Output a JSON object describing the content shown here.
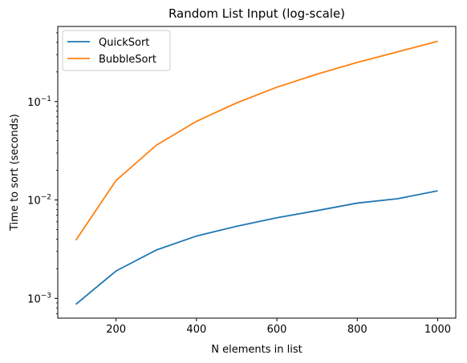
{
  "chart_data": {
    "type": "line",
    "title": "Random List Input (log-scale)",
    "xlabel": "N elements in list",
    "ylabel": "Time to sort (seconds)",
    "xscale": "linear",
    "yscale": "log",
    "xlim": [
      55,
      1045
    ],
    "ylim": [
      0.00063,
      0.58
    ],
    "x_ticks": [
      {
        "value": 200,
        "label": "200"
      },
      {
        "value": 400,
        "label": "400"
      },
      {
        "value": 600,
        "label": "600"
      },
      {
        "value": 800,
        "label": "800"
      },
      {
        "value": 1000,
        "label": "1000"
      }
    ],
    "y_ticks": [
      {
        "value": 0.001,
        "base": "10",
        "exp": "−3"
      },
      {
        "value": 0.01,
        "base": "10",
        "exp": "−2"
      },
      {
        "value": 0.1,
        "base": "10",
        "exp": "−1"
      }
    ],
    "x": [
      100,
      200,
      300,
      400,
      500,
      600,
      700,
      800,
      900,
      1000
    ],
    "series": [
      {
        "name": "QuickSort",
        "color": "#1f77b4",
        "values": [
          0.00087,
          0.0019,
          0.0031,
          0.0043,
          0.0054,
          0.0066,
          0.0078,
          0.0093,
          0.0103,
          0.0124
        ]
      },
      {
        "name": "BubbleSort",
        "color": "#ff7f0e",
        "values": [
          0.0039,
          0.0158,
          0.036,
          0.063,
          0.097,
          0.14,
          0.19,
          0.25,
          0.32,
          0.41
        ]
      }
    ],
    "grid": false,
    "legend_position": "top-left"
  }
}
